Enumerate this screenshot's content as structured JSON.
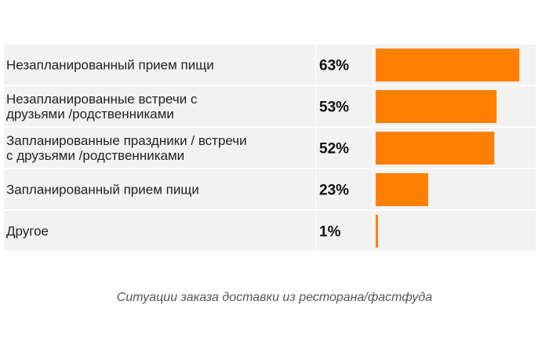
{
  "chart_data": {
    "type": "bar",
    "orientation": "horizontal",
    "categories": [
      [
        "Незапланированный прием пищи"
      ],
      [
        "Незапланированные встречи с",
        "друзьями /родственниками"
      ],
      [
        "Запланированные праздники / встречи",
        "с друзьями /родственниками"
      ],
      [
        "Запланированный прием пищи"
      ],
      [
        "Другое"
      ]
    ],
    "values": [
      63,
      53,
      52,
      23,
      1
    ],
    "value_labels": [
      "63%",
      "53%",
      "52%",
      "23%",
      "1%"
    ],
    "xlim": [
      0,
      66
    ],
    "bar_color": "#FF8000",
    "row_background": "#F2F2F2",
    "grid": false,
    "legend": "none"
  },
  "caption": "Ситуации заказа доставки из ресторана/фастфуда"
}
